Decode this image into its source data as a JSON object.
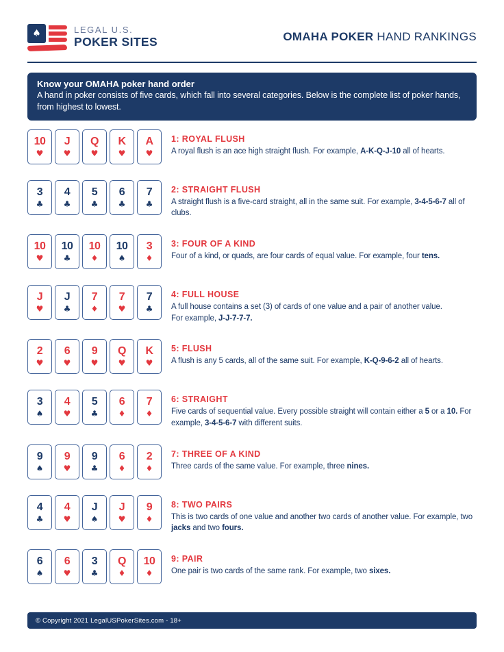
{
  "colors": {
    "navy": "#1d3a67",
    "red": "#e3383f",
    "logo_muted": "#667699",
    "card_border": "#42639a",
    "page_bg": "#ffffff"
  },
  "icons": {
    "spade": "♠",
    "heart": "♥",
    "diamond": "♦",
    "club": "♣"
  },
  "header": {
    "logo_line1": "LEGAL U.S.",
    "logo_line2": "POKER SITES",
    "title_bold": "OMAHA POKER",
    "title_regular": "HAND RANKINGS"
  },
  "banner": {
    "title": "Know your OMAHA poker hand order",
    "body": "A hand in poker consists of five cards, which fall into several categories. Below is the complete list of poker hands, from highest to lowest."
  },
  "hands": [
    {
      "title": "1: ROYAL FLUSH",
      "cards": [
        {
          "rank": "10",
          "suit": "heart"
        },
        {
          "rank": "J",
          "suit": "heart"
        },
        {
          "rank": "Q",
          "suit": "heart"
        },
        {
          "rank": "K",
          "suit": "heart"
        },
        {
          "rank": "A",
          "suit": "heart"
        }
      ],
      "description": [
        {
          "text": "A royal flush is an ace high straight flush. For example, "
        },
        {
          "text": "A-K-Q-J-10",
          "bold": true
        },
        {
          "text": " all of hearts."
        }
      ]
    },
    {
      "title": "2: STRAIGHT FLUSH",
      "cards": [
        {
          "rank": "3",
          "suit": "club"
        },
        {
          "rank": "4",
          "suit": "club"
        },
        {
          "rank": "5",
          "suit": "club"
        },
        {
          "rank": "6",
          "suit": "club"
        },
        {
          "rank": "7",
          "suit": "club"
        }
      ],
      "description": [
        {
          "text": "A straight flush is a five-card straight, all in the same suit. For example, "
        },
        {
          "text": "3-4-5-6-7",
          "bold": true
        },
        {
          "text": " all of clubs."
        }
      ]
    },
    {
      "title": "3: FOUR OF A KIND",
      "cards": [
        {
          "rank": "10",
          "suit": "heart"
        },
        {
          "rank": "10",
          "suit": "club"
        },
        {
          "rank": "10",
          "suit": "diamond"
        },
        {
          "rank": "10",
          "suit": "spade"
        },
        {
          "rank": "3",
          "suit": "diamond"
        }
      ],
      "description": [
        {
          "text": "Four of a kind, or quads, are four cards of equal value. For example, four "
        },
        {
          "text": "tens.",
          "bold": true
        }
      ]
    },
    {
      "title": "4: FULL HOUSE",
      "cards": [
        {
          "rank": "J",
          "suit": "heart"
        },
        {
          "rank": "J",
          "suit": "club"
        },
        {
          "rank": "7",
          "suit": "diamond"
        },
        {
          "rank": "7",
          "suit": "heart"
        },
        {
          "rank": "7",
          "suit": "club"
        }
      ],
      "description": [
        {
          "text": "A full house contains a set (3) of cards of one value and a pair of another value."
        },
        {
          "break": true
        },
        {
          "text": "For example, "
        },
        {
          "text": "J-J-7-7-7.",
          "bold": true
        }
      ]
    },
    {
      "title": "5: FLUSH",
      "cards": [
        {
          "rank": "2",
          "suit": "heart"
        },
        {
          "rank": "6",
          "suit": "heart"
        },
        {
          "rank": "9",
          "suit": "heart"
        },
        {
          "rank": "Q",
          "suit": "heart"
        },
        {
          "rank": "K",
          "suit": "heart"
        }
      ],
      "description": [
        {
          "text": "A flush is any 5 cards, all of the same suit. For example, "
        },
        {
          "text": "K-Q-9-6-2",
          "bold": true
        },
        {
          "text": " all of hearts."
        }
      ]
    },
    {
      "title": "6: STRAIGHT",
      "cards": [
        {
          "rank": "3",
          "suit": "spade"
        },
        {
          "rank": "4",
          "suit": "heart"
        },
        {
          "rank": "5",
          "suit": "club"
        },
        {
          "rank": "6",
          "suit": "diamond"
        },
        {
          "rank": "7",
          "suit": "diamond"
        }
      ],
      "description": [
        {
          "text": "Five cards of sequential value. Every possible straight will contain either a "
        },
        {
          "text": "5",
          "bold": true
        },
        {
          "text": " or a "
        },
        {
          "text": "10.",
          "bold": true
        },
        {
          "text": " For example, "
        },
        {
          "text": "3-4-5-6-7",
          "bold": true
        },
        {
          "text": " with different suits."
        }
      ]
    },
    {
      "title": "7: THREE OF A KIND",
      "cards": [
        {
          "rank": "9",
          "suit": "spade"
        },
        {
          "rank": "9",
          "suit": "heart"
        },
        {
          "rank": "9",
          "suit": "club"
        },
        {
          "rank": "6",
          "suit": "diamond"
        },
        {
          "rank": "2",
          "suit": "diamond"
        }
      ],
      "description": [
        {
          "text": "Three cards of the same value. For example, three "
        },
        {
          "text": "nines.",
          "bold": true
        }
      ]
    },
    {
      "title": "8: TWO PAIRS",
      "cards": [
        {
          "rank": "4",
          "suit": "club"
        },
        {
          "rank": "4",
          "suit": "heart"
        },
        {
          "rank": "J",
          "suit": "spade"
        },
        {
          "rank": "J",
          "suit": "heart"
        },
        {
          "rank": "9",
          "suit": "diamond"
        }
      ],
      "description": [
        {
          "text": "This is two cards of one value and another two cards of another value. For example, two "
        },
        {
          "text": "jacks",
          "bold": true
        },
        {
          "text": " and two "
        },
        {
          "text": "fours.",
          "bold": true
        }
      ]
    },
    {
      "title": "9: PAIR",
      "cards": [
        {
          "rank": "6",
          "suit": "spade"
        },
        {
          "rank": "6",
          "suit": "heart"
        },
        {
          "rank": "3",
          "suit": "club"
        },
        {
          "rank": "Q",
          "suit": "diamond"
        },
        {
          "rank": "10",
          "suit": "diamond"
        }
      ],
      "description": [
        {
          "text": "One pair is two cards of the same rank. For example, two "
        },
        {
          "text": "sixes.",
          "bold": true
        }
      ]
    }
  ],
  "footer": {
    "text": "© Copyright 2021 LegalUSPokerSites.com - 18+"
  }
}
